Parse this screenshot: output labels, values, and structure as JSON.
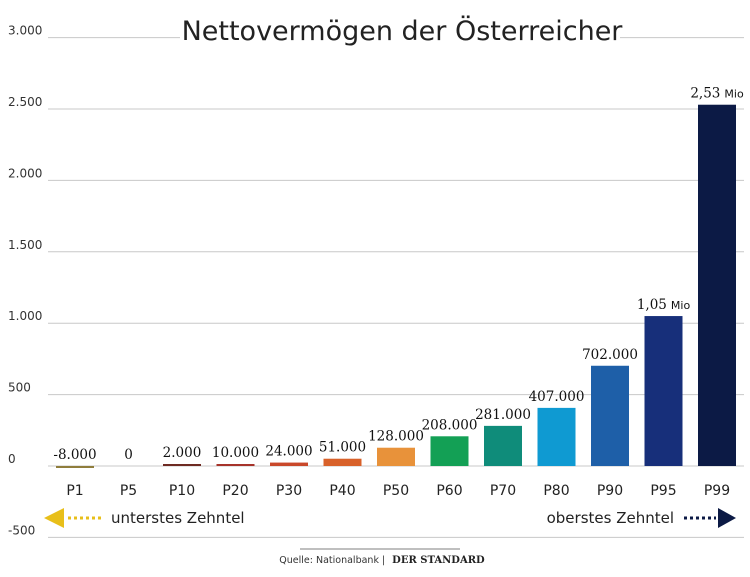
{
  "chart_data": {
    "type": "bar",
    "title": "Nettovermögen der Österreicher",
    "categories": [
      "P1",
      "P5",
      "P10",
      "P20",
      "P30",
      "P40",
      "P50",
      "P60",
      "P70",
      "P80",
      "P90",
      "P95",
      "P99"
    ],
    "values": [
      -8,
      0,
      2,
      10,
      24,
      51,
      128,
      208,
      281,
      407,
      702,
      1050,
      2530
    ],
    "value_labels": [
      {
        "number": "-8.000"
      },
      {
        "number": "0"
      },
      {
        "number": "2.000"
      },
      {
        "number": "10.000"
      },
      {
        "number": "24.000"
      },
      {
        "number": "51.000"
      },
      {
        "number": "128.000"
      },
      {
        "number": "208.000"
      },
      {
        "number": "281.000"
      },
      {
        "number": "407.000"
      },
      {
        "number": "702.000"
      },
      {
        "number": "1,05",
        "unit": "Mio"
      },
      {
        "number": "2,53",
        "unit": "Mio"
      }
    ],
    "colors": [
      "#8f7d3c",
      "#8f7d3c",
      "#6e2a22",
      "#a6332a",
      "#c9482a",
      "#d8612a",
      "#e8923a",
      "#13a055",
      "#0f8c7a",
      "#0f9ad2",
      "#1e5fa8",
      "#172f7a",
      "#0c1a45"
    ],
    "ylim": [
      -500,
      3000
    ],
    "yticks": [
      -500,
      0,
      500,
      1000,
      1500,
      2000,
      2500,
      3000
    ],
    "ytick_labels": [
      "-500",
      "0",
      "500",
      "1.000",
      "1.500",
      "2.000",
      "2.500",
      "3.000"
    ],
    "grid": true,
    "xlabel": "",
    "ylabel": ""
  },
  "annotations": {
    "left": "unterstes Zehntel",
    "right": "oberstes Zehntel",
    "left_color": "#e8bf1a",
    "right_color": "#0c1a45"
  },
  "footer": {
    "source": "Quelle: Nationalbank |",
    "brand": "DER STANDARD"
  }
}
